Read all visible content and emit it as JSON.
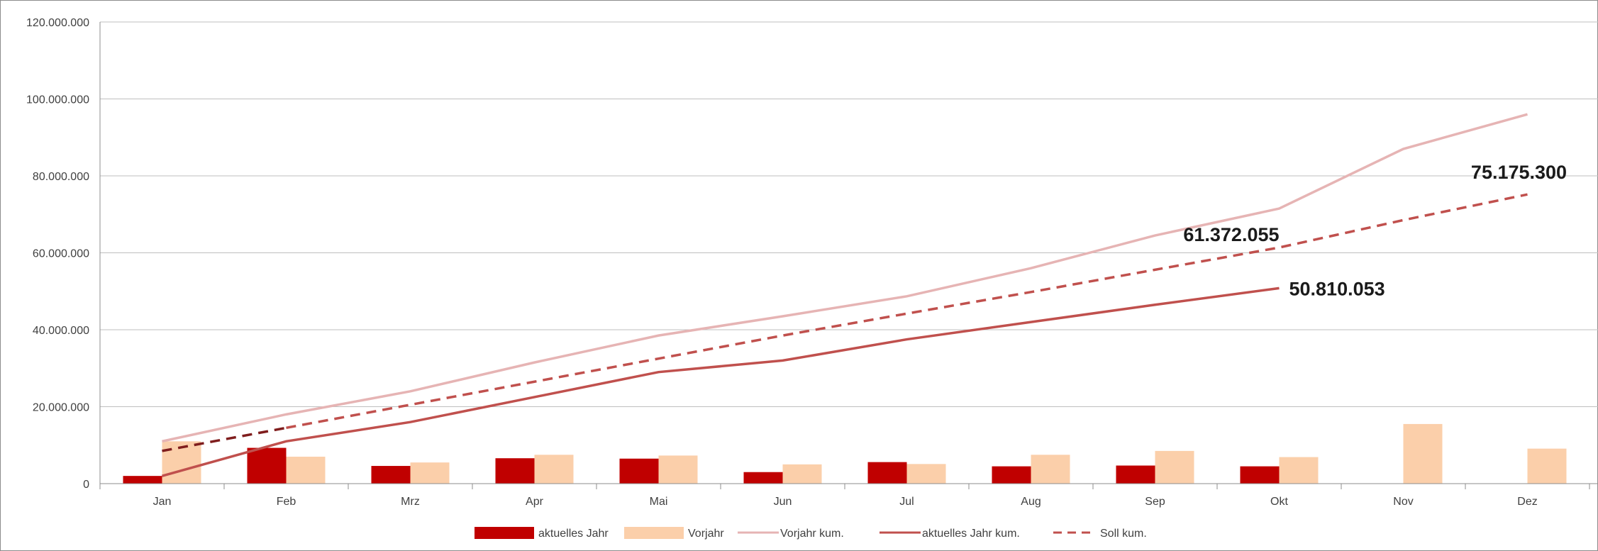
{
  "chart_data": {
    "type": "bar",
    "categories": [
      "Jan",
      "Feb",
      "Mrz",
      "Apr",
      "Mai",
      "Jun",
      "Jul",
      "Aug",
      "Sep",
      "Okt",
      "Nov",
      "Dez"
    ],
    "ylim": [
      0,
      120000000
    ],
    "y_ticks": [
      0,
      20000000,
      40000000,
      60000000,
      80000000,
      100000000,
      120000000
    ],
    "y_tick_labels": [
      "0",
      "20.000.000",
      "40.000.000",
      "60.000.000",
      "80.000.000",
      "100.000.000",
      "120.000.000"
    ],
    "grid": true,
    "legend_position": "bottom",
    "series": [
      {
        "name": "aktuelles Jahr",
        "kind": "bar",
        "color": "#c00000",
        "values": [
          2000000,
          9300000,
          4600000,
          6600000,
          6500000,
          3000000,
          5600000,
          4500000,
          4700000,
          4500000,
          null,
          null
        ]
      },
      {
        "name": "Vorjahr",
        "kind": "bar",
        "color": "#fbcfaa",
        "values": [
          11000000,
          7000000,
          5500000,
          7500000,
          7300000,
          5000000,
          5100000,
          7500000,
          8500000,
          6900000,
          15500000,
          9100000
        ]
      },
      {
        "name": "Vorjahr kum.",
        "kind": "line",
        "style": "solid",
        "color": "#e6b4b4",
        "values": [
          11000000,
          18000000,
          24000000,
          31500000,
          38500000,
          43500000,
          48700000,
          56000000,
          64500000,
          71500000,
          87000000,
          96000000
        ]
      },
      {
        "name": "aktuelles Jahr kum.",
        "kind": "line",
        "style": "solid",
        "color": "#c0504d",
        "values": [
          2000000,
          11000000,
          16000000,
          22500000,
          29000000,
          32000000,
          37500000,
          42000000,
          46500000,
          50810053,
          null,
          null
        ]
      },
      {
        "name": "Soll kum.",
        "kind": "line",
        "style": "dashed",
        "color": "#c0504d",
        "color_first_segment": "#7f1d1d",
        "values": [
          8500000,
          14500000,
          20500000,
          26500000,
          32500000,
          38500000,
          44200000,
          49800000,
          55600000,
          61372055,
          68500000,
          75175300
        ]
      }
    ],
    "annotations": [
      {
        "text": "75.175.300",
        "x": "Dez",
        "y": 75175300
      },
      {
        "text": "61.372.055",
        "x": "Okt",
        "y": 61372055
      },
      {
        "text": "50.810.053",
        "x": "Okt",
        "y": 50810053
      }
    ]
  }
}
